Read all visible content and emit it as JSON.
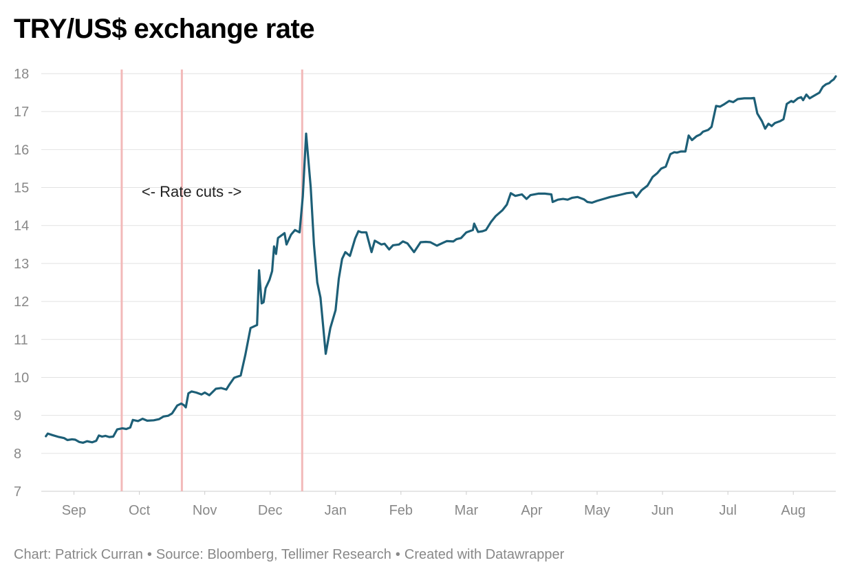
{
  "title": "TRY/US$ exchange rate",
  "footer": {
    "chart_by": "Chart: Patrick Curran",
    "source": "Source: Bloomberg, Tellimer Research",
    "created": "Created with Datawrapper",
    "separator": "•"
  },
  "colors": {
    "line": "#1d5f77",
    "rate_cut_marker": "#f2b9b9",
    "grid": "#e2e2e2",
    "axis": "#cccccc",
    "tick_text": "#888888"
  },
  "chart_data": {
    "type": "line",
    "title": "TRY/US$ exchange rate",
    "xlabel": "",
    "ylabel": "",
    "ylim": [
      7,
      18
    ],
    "yticks": [
      7,
      8,
      9,
      10,
      11,
      12,
      13,
      14,
      15,
      16,
      17,
      18
    ],
    "x_unit": "months since September (0 = start of Sep, last year)",
    "xlim": [
      0,
      12.15
    ],
    "xticks": [
      {
        "label": "Sep",
        "x": 0.5
      },
      {
        "label": "Oct",
        "x": 1.5
      },
      {
        "label": "Nov",
        "x": 2.5
      },
      {
        "label": "Dec",
        "x": 3.5
      },
      {
        "label": "Jan",
        "x": 4.5
      },
      {
        "label": "Feb",
        "x": 5.5
      },
      {
        "label": "Mar",
        "x": 6.5
      },
      {
        "label": "Apr",
        "x": 7.5
      },
      {
        "label": "May",
        "x": 8.5
      },
      {
        "label": "Jun",
        "x": 9.5
      },
      {
        "label": "Jul",
        "x": 10.5
      },
      {
        "label": "Aug",
        "x": 11.5
      }
    ],
    "grid": true,
    "legend": "none",
    "rate_cuts": [
      1.23,
      2.15,
      3.99
    ],
    "annotations": [
      {
        "text": "<- Rate cuts ->",
        "x": 2.3,
        "y": 14.9
      }
    ],
    "series": [
      {
        "points": [
          [
            0.07,
            8.45
          ],
          [
            0.1,
            8.52
          ],
          [
            0.17,
            8.48
          ],
          [
            0.27,
            8.43
          ],
          [
            0.35,
            8.4
          ],
          [
            0.4,
            8.35
          ],
          [
            0.47,
            8.37
          ],
          [
            0.52,
            8.36
          ],
          [
            0.58,
            8.3
          ],
          [
            0.64,
            8.28
          ],
          [
            0.7,
            8.32
          ],
          [
            0.78,
            8.29
          ],
          [
            0.84,
            8.33
          ],
          [
            0.88,
            8.47
          ],
          [
            0.93,
            8.44
          ],
          [
            0.98,
            8.46
          ],
          [
            1.04,
            8.43
          ],
          [
            1.1,
            8.44
          ],
          [
            1.16,
            8.63
          ],
          [
            1.24,
            8.66
          ],
          [
            1.3,
            8.64
          ],
          [
            1.36,
            8.68
          ],
          [
            1.4,
            8.88
          ],
          [
            1.48,
            8.85
          ],
          [
            1.55,
            8.91
          ],
          [
            1.62,
            8.86
          ],
          [
            1.72,
            8.87
          ],
          [
            1.8,
            8.9
          ],
          [
            1.87,
            8.97
          ],
          [
            1.94,
            8.99
          ],
          [
            2.0,
            9.05
          ],
          [
            2.08,
            9.26
          ],
          [
            2.14,
            9.31
          ],
          [
            2.18,
            9.27
          ],
          [
            2.21,
            9.21
          ],
          [
            2.25,
            9.58
          ],
          [
            2.3,
            9.63
          ],
          [
            2.37,
            9.6
          ],
          [
            2.45,
            9.55
          ],
          [
            2.5,
            9.6
          ],
          [
            2.57,
            9.53
          ],
          [
            2.67,
            9.7
          ],
          [
            2.75,
            9.72
          ],
          [
            2.83,
            9.68
          ],
          [
            2.88,
            9.82
          ],
          [
            2.95,
            9.99
          ],
          [
            3.05,
            10.05
          ],
          [
            3.12,
            10.59
          ],
          [
            3.2,
            11.3
          ],
          [
            3.3,
            11.38
          ],
          [
            3.33,
            12.82
          ],
          [
            3.37,
            11.95
          ],
          [
            3.4,
            11.98
          ],
          [
            3.43,
            12.35
          ],
          [
            3.49,
            12.57
          ],
          [
            3.53,
            12.8
          ],
          [
            3.56,
            13.45
          ],
          [
            3.59,
            13.25
          ],
          [
            3.62,
            13.67
          ],
          [
            3.72,
            13.8
          ],
          [
            3.75,
            13.5
          ],
          [
            3.82,
            13.76
          ],
          [
            3.88,
            13.88
          ],
          [
            3.95,
            13.82
          ],
          [
            4.0,
            14.77
          ],
          [
            4.05,
            16.42
          ],
          [
            4.12,
            15.0
          ],
          [
            4.17,
            13.5
          ],
          [
            4.22,
            12.5
          ],
          [
            4.27,
            12.1
          ],
          [
            4.35,
            10.62
          ],
          [
            4.42,
            11.3
          ],
          [
            4.5,
            11.77
          ],
          [
            4.55,
            12.6
          ],
          [
            4.6,
            13.12
          ],
          [
            4.65,
            13.3
          ],
          [
            4.72,
            13.2
          ],
          [
            4.8,
            13.66
          ],
          [
            4.85,
            13.85
          ],
          [
            4.9,
            13.82
          ],
          [
            4.97,
            13.82
          ],
          [
            5.05,
            13.3
          ],
          [
            5.1,
            13.6
          ],
          [
            5.2,
            13.5
          ],
          [
            5.25,
            13.52
          ],
          [
            5.32,
            13.37
          ],
          [
            5.38,
            13.48
          ],
          [
            5.47,
            13.5
          ],
          [
            5.53,
            13.58
          ],
          [
            5.6,
            13.53
          ],
          [
            5.7,
            13.3
          ],
          [
            5.8,
            13.56
          ],
          [
            5.88,
            13.57
          ],
          [
            5.95,
            13.56
          ],
          [
            6.05,
            13.47
          ],
          [
            6.15,
            13.55
          ],
          [
            6.2,
            13.59
          ],
          [
            6.3,
            13.58
          ],
          [
            6.35,
            13.64
          ],
          [
            6.42,
            13.67
          ],
          [
            6.5,
            13.82
          ],
          [
            6.55,
            13.85
          ],
          [
            6.6,
            13.88
          ],
          [
            6.62,
            14.05
          ],
          [
            6.68,
            13.83
          ],
          [
            6.75,
            13.85
          ],
          [
            6.8,
            13.88
          ],
          [
            6.88,
            14.1
          ],
          [
            6.95,
            14.25
          ],
          [
            7.05,
            14.4
          ],
          [
            7.12,
            14.55
          ],
          [
            7.18,
            14.85
          ],
          [
            7.25,
            14.78
          ],
          [
            7.3,
            14.8
          ],
          [
            7.35,
            14.82
          ],
          [
            7.42,
            14.7
          ],
          [
            7.48,
            14.8
          ],
          [
            7.6,
            14.84
          ],
          [
            7.7,
            14.84
          ],
          [
            7.8,
            14.82
          ],
          [
            7.82,
            14.62
          ],
          [
            7.9,
            14.68
          ],
          [
            7.98,
            14.7
          ],
          [
            8.05,
            14.68
          ],
          [
            8.12,
            14.73
          ],
          [
            8.2,
            14.75
          ],
          [
            8.3,
            14.69
          ],
          [
            8.35,
            14.62
          ],
          [
            8.42,
            14.6
          ],
          [
            8.5,
            14.65
          ],
          [
            8.6,
            14.7
          ],
          [
            8.7,
            14.75
          ],
          [
            8.78,
            14.78
          ],
          [
            8.88,
            14.82
          ],
          [
            8.95,
            14.85
          ],
          [
            9.05,
            14.87
          ],
          [
            9.1,
            14.75
          ],
          [
            9.18,
            14.93
          ],
          [
            9.27,
            15.05
          ],
          [
            9.35,
            15.28
          ],
          [
            9.42,
            15.38
          ],
          [
            9.48,
            15.5
          ],
          [
            9.55,
            15.55
          ],
          [
            9.62,
            15.88
          ],
          [
            9.68,
            15.93
          ],
          [
            9.72,
            15.92
          ],
          [
            9.78,
            15.95
          ],
          [
            9.85,
            15.95
          ],
          [
            9.9,
            16.37
          ],
          [
            9.95,
            16.25
          ],
          [
            10.02,
            16.35
          ],
          [
            10.08,
            16.4
          ],
          [
            10.12,
            16.47
          ],
          [
            10.2,
            16.52
          ],
          [
            10.25,
            16.6
          ],
          [
            10.32,
            17.15
          ],
          [
            10.38,
            17.13
          ],
          [
            10.45,
            17.2
          ],
          [
            10.52,
            17.28
          ],
          [
            10.58,
            17.25
          ],
          [
            10.65,
            17.33
          ],
          [
            10.75,
            17.35
          ],
          [
            10.85,
            17.35
          ],
          [
            10.9,
            17.36
          ],
          [
            10.95,
            16.95
          ],
          [
            11.02,
            16.75
          ],
          [
            11.07,
            16.55
          ],
          [
            11.12,
            16.68
          ],
          [
            11.17,
            16.62
          ],
          [
            11.22,
            16.7
          ],
          [
            11.3,
            16.75
          ],
          [
            11.35,
            16.8
          ],
          [
            11.4,
            17.2
          ],
          [
            11.47,
            17.28
          ],
          [
            11.5,
            17.25
          ],
          [
            11.57,
            17.35
          ],
          [
            11.62,
            17.38
          ],
          [
            11.65,
            17.3
          ],
          [
            11.7,
            17.45
          ],
          [
            11.75,
            17.35
          ],
          [
            11.82,
            17.42
          ],
          [
            11.9,
            17.5
          ],
          [
            11.95,
            17.65
          ],
          [
            12.0,
            17.72
          ],
          [
            12.05,
            17.75
          ],
          [
            12.08,
            17.8
          ],
          [
            12.12,
            17.85
          ],
          [
            12.15,
            17.93
          ]
        ]
      }
    ]
  }
}
